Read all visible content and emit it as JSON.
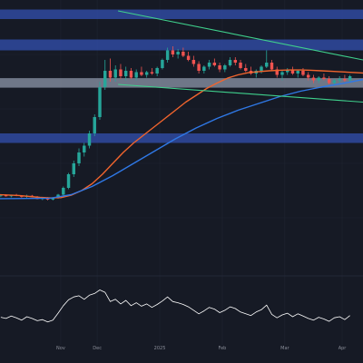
{
  "theme": {
    "background": "#161a25",
    "band_blue": "#2f4aa0",
    "band_gray": "#8d97aa",
    "candle_up": "#26a69a",
    "candle_down": "#ef5350",
    "ma_short": "#f0642d",
    "ma_long": "#2f78e6",
    "channel": "#3fd08c",
    "rsi_line": "#ffffff",
    "grid": "#1f2431"
  },
  "chart_data": [
    {
      "type": "candlestick",
      "title": "",
      "xlabel": "",
      "ylabel": "",
      "x_ticks": [
        "Nov",
        "Dec",
        "2025",
        "Feb",
        "Mar",
        "Apr"
      ],
      "x_tick_positions": [
        12,
        19,
        31,
        43,
        55,
        66
      ],
      "x_range": [
        0,
        70
      ],
      "ylim": [
        0,
        100
      ],
      "grid": true,
      "legend": "none",
      "candles": [
        [
          28.0,
          28.4,
          27.6,
          28.2
        ],
        [
          28.2,
          28.6,
          27.8,
          27.9
        ],
        [
          27.9,
          28.4,
          27.5,
          28.3
        ],
        [
          28.3,
          28.8,
          27.9,
          28.0
        ],
        [
          28.0,
          28.3,
          27.4,
          27.7
        ],
        [
          27.7,
          28.5,
          27.3,
          28.1
        ],
        [
          28.1,
          28.4,
          27.5,
          27.6
        ],
        [
          27.6,
          28.0,
          26.8,
          26.9
        ],
        [
          26.9,
          27.4,
          26.5,
          27.2
        ],
        [
          27.2,
          27.6,
          26.4,
          26.7
        ],
        [
          26.7,
          27.4,
          26.4,
          27.3
        ],
        [
          27.3,
          28.8,
          27.0,
          28.5
        ],
        [
          28.5,
          31.5,
          28.2,
          31.0
        ],
        [
          31.0,
          36.5,
          30.5,
          36.0
        ],
        [
          36.0,
          41.0,
          35.0,
          40.0
        ],
        [
          40.0,
          45.5,
          39.0,
          44.0
        ],
        [
          44.0,
          47.5,
          42.5,
          46.5
        ],
        [
          46.5,
          52.0,
          45.5,
          51.0
        ],
        [
          51.0,
          58.0,
          50.0,
          57.0
        ],
        [
          57.0,
          70.0,
          56.0,
          68.0
        ],
        [
          68.0,
          78.0,
          67.0,
          74.0
        ],
        [
          74.0,
          78.5,
          70.0,
          71.5
        ],
        [
          71.5,
          76.0,
          70.0,
          74.5
        ],
        [
          74.5,
          76.5,
          71.0,
          72.0
        ],
        [
          72.0,
          75.5,
          70.5,
          74.0
        ],
        [
          74.0,
          75.0,
          71.0,
          71.5
        ],
        [
          71.5,
          74.5,
          70.5,
          73.5
        ],
        [
          73.5,
          75.5,
          72.0,
          72.5
        ],
        [
          72.5,
          74.0,
          71.5,
          73.5
        ],
        [
          73.5,
          75.0,
          72.5,
          73.0
        ],
        [
          73.0,
          75.5,
          72.0,
          75.0
        ],
        [
          75.0,
          78.5,
          74.5,
          78.0
        ],
        [
          78.0,
          82.5,
          77.0,
          81.5
        ],
        [
          81.5,
          83.0,
          79.0,
          80.0
        ],
        [
          80.0,
          82.0,
          78.5,
          81.0
        ],
        [
          81.0,
          82.5,
          79.0,
          79.5
        ],
        [
          79.5,
          81.0,
          77.5,
          78.0
        ],
        [
          78.0,
          79.5,
          75.5,
          76.5
        ],
        [
          76.5,
          77.5,
          73.0,
          74.0
        ],
        [
          74.0,
          76.0,
          73.0,
          75.5
        ],
        [
          75.5,
          78.0,
          74.5,
          77.0
        ],
        [
          77.0,
          78.5,
          75.5,
          76.0
        ],
        [
          76.0,
          77.0,
          73.5,
          74.5
        ],
        [
          74.5,
          76.5,
          73.5,
          76.0
        ],
        [
          76.0,
          79.0,
          75.5,
          78.0
        ],
        [
          78.0,
          79.0,
          76.0,
          77.0
        ],
        [
          77.0,
          78.0,
          74.5,
          75.0
        ],
        [
          75.0,
          76.5,
          73.5,
          74.0
        ],
        [
          74.0,
          75.5,
          72.5,
          73.0
        ],
        [
          73.0,
          74.5,
          71.5,
          74.0
        ],
        [
          74.0,
          76.0,
          73.0,
          75.5
        ],
        [
          75.5,
          81.5,
          75.0,
          77.0
        ],
        [
          77.0,
          78.0,
          74.0,
          74.5
        ],
        [
          74.5,
          75.5,
          71.5,
          72.5
        ],
        [
          72.5,
          74.0,
          70.5,
          73.5
        ],
        [
          73.5,
          75.0,
          72.5,
          74.5
        ],
        [
          74.5,
          75.5,
          72.5,
          73.0
        ],
        [
          73.0,
          74.5,
          71.5,
          74.0
        ],
        [
          74.0,
          75.0,
          72.0,
          72.5
        ],
        [
          72.5,
          73.5,
          70.5,
          71.5
        ],
        [
          71.5,
          72.5,
          69.5,
          70.5
        ],
        [
          70.5,
          72.0,
          69.5,
          71.5
        ],
        [
          71.5,
          73.0,
          70.5,
          71.0
        ],
        [
          71.0,
          72.0,
          69.0,
          69.5
        ],
        [
          69.5,
          71.0,
          68.5,
          70.5
        ],
        [
          70.5,
          72.0,
          69.5,
          71.0
        ],
        [
          71.0,
          72.5,
          70.0,
          70.5
        ],
        [
          70.5,
          72.5,
          70.0,
          72.0
        ]
      ],
      "moving_averages": [
        {
          "color_key": "ma_short",
          "x": [
            0,
            4,
            8,
            10,
            12,
            14,
            16,
            18,
            20,
            22,
            24,
            26,
            28,
            30,
            32,
            34,
            36,
            38,
            40,
            42,
            44,
            46,
            48,
            50,
            52,
            54,
            56,
            58,
            60,
            62,
            64,
            66,
            68,
            70
          ],
          "y": [
            28.5,
            28.2,
            27.5,
            27.3,
            27.4,
            28.3,
            30.0,
            32.5,
            36.0,
            40.0,
            44.0,
            47.5,
            50.5,
            53.5,
            56.5,
            59.5,
            62.5,
            65.0,
            67.5,
            69.5,
            71.3,
            72.5,
            73.3,
            73.7,
            74.0,
            74.2,
            74.3,
            74.3,
            74.2,
            74.0,
            73.8,
            73.6,
            73.4,
            73.2
          ]
        },
        {
          "color_key": "ma_long",
          "x": [
            0,
            10,
            14,
            18,
            22,
            26,
            30,
            34,
            38,
            42,
            46,
            50,
            54,
            58,
            62,
            66,
            70
          ],
          "y": [
            27.0,
            27.2,
            28.5,
            31.5,
            35.5,
            40.0,
            44.5,
            49.0,
            53.0,
            56.5,
            59.5,
            62.0,
            64.5,
            66.5,
            68.0,
            69.3,
            70.8
          ]
        }
      ],
      "trendlines": [
        {
          "color_key": "channel",
          "points": [
            [
              23,
              96.0
            ],
            [
              70,
              78.0
            ]
          ]
        },
        {
          "color_key": "channel",
          "points": [
            [
              23,
              69.0
            ],
            [
              70,
              62.5
            ]
          ]
        }
      ],
      "horizontal_bands": [
        {
          "y_from": 96.5,
          "y_to": 93.0,
          "color_key": "band_blue"
        },
        {
          "y_from": 85.5,
          "y_to": 81.5,
          "color_key": "band_blue"
        },
        {
          "y_from": 71.3,
          "y_to": 67.8,
          "color_key": "band_gray"
        },
        {
          "y_from": 51.0,
          "y_to": 47.5,
          "color_key": "band_blue"
        }
      ]
    },
    {
      "type": "line",
      "title": "",
      "xlabel": "",
      "ylabel": "",
      "x_range": [
        0,
        70
      ],
      "ylim": [
        0,
        100
      ],
      "legend": "none",
      "series": [
        {
          "color_key": "rsi_line",
          "values": [
            35,
            33,
            37,
            34,
            30,
            36,
            33,
            29,
            31,
            27,
            30,
            42,
            55,
            65,
            70,
            72,
            66,
            73,
            76,
            82,
            78,
            62,
            66,
            58,
            64,
            55,
            60,
            54,
            58,
            52,
            57,
            63,
            70,
            62,
            60,
            57,
            53,
            47,
            41,
            46,
            52,
            49,
            43,
            47,
            53,
            50,
            44,
            41,
            38,
            44,
            48,
            56,
            40,
            34,
            39,
            42,
            36,
            41,
            37,
            33,
            30,
            35,
            32,
            28,
            34,
            36,
            31,
            38
          ]
        }
      ]
    }
  ]
}
